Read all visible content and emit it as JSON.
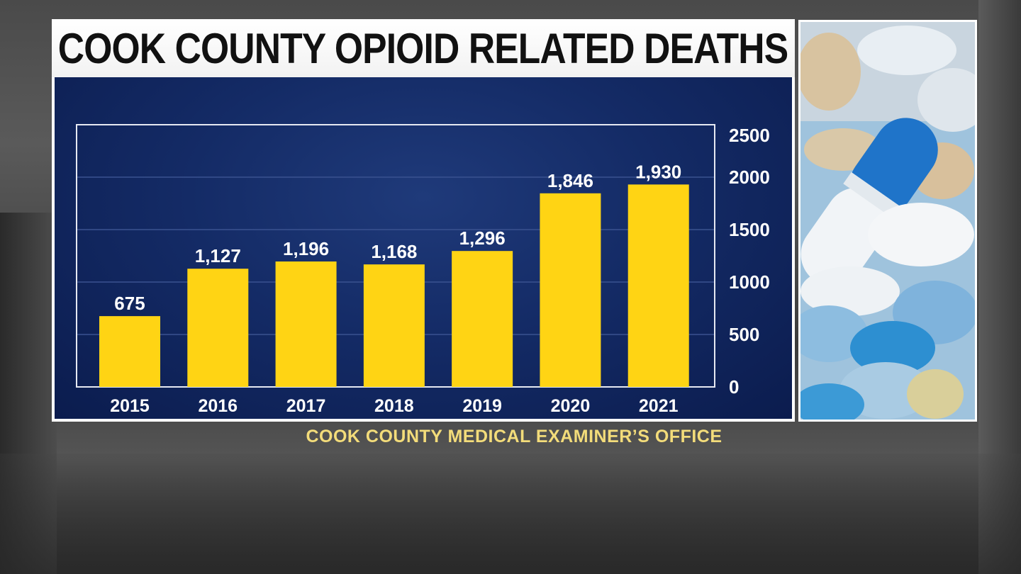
{
  "title": "COOK COUNTY OPIOID RELATED DEATHS",
  "source": "COOK COUNTY MEDICAL EXAMINER’S OFFICE",
  "colors": {
    "bar": "#ffd414",
    "chart_background": "#142b66",
    "text": "#ffffff",
    "source_text": "#f3dc7a"
  },
  "photo": {
    "icon": "pills-photo-icon"
  },
  "chart_data": {
    "type": "bar",
    "title": "COOK COUNTY OPIOID RELATED DEATHS",
    "categories": [
      "2015",
      "2016",
      "2017",
      "2018",
      "2019",
      "2020",
      "2021"
    ],
    "values": [
      675,
      1127,
      1196,
      1168,
      1296,
      1846,
      1930
    ],
    "value_labels": [
      "675",
      "1,127",
      "1,196",
      "1,168",
      "1,296",
      "1,846",
      "1,930"
    ],
    "ylim": [
      0,
      2500
    ],
    "y_ticks": [
      0,
      500,
      1000,
      1500,
      2000,
      2500
    ],
    "y_axis_side": "right",
    "grid": true,
    "legend": "none"
  }
}
